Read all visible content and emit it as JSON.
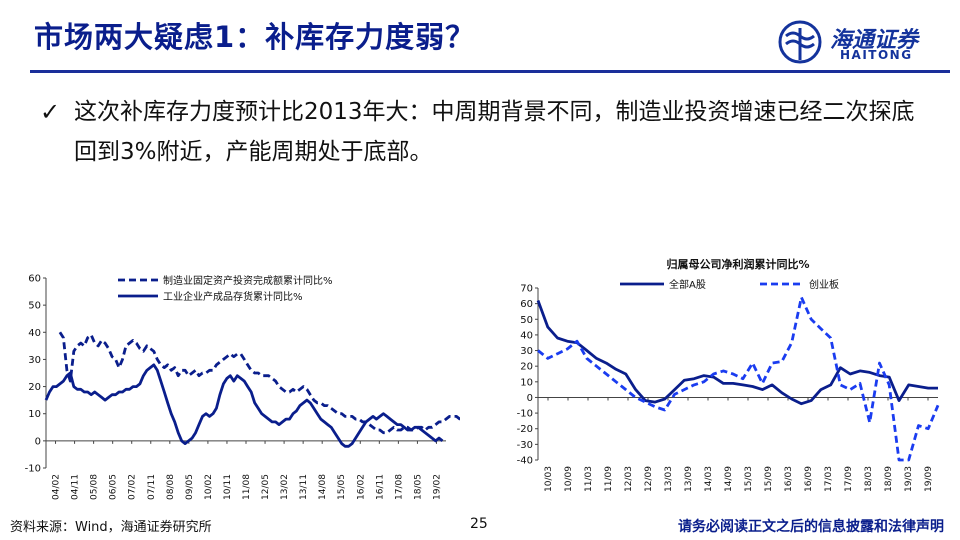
{
  "header": {
    "title": "市场两大疑虑1：补库存力度弱？",
    "logo_cn": "海通证券",
    "logo_en": "HAITONG",
    "accent_color": "#0a1e8c"
  },
  "bullet": {
    "icon": "check-icon",
    "text": "这次补库存力度预计比2013年大：中周期背景不同，制造业投资增速已经二次探底回到3%附近，产能周期处于底部。"
  },
  "footer": {
    "source": "资料来源：Wind，海通证券研究所",
    "page": "25",
    "disclaimer": "请务必阅读正文之后的信息披露和法律声明"
  },
  "chart_data": [
    {
      "type": "line",
      "title": "",
      "ylim": [
        -10,
        60
      ],
      "yticks": [
        -10,
        0,
        10,
        20,
        30,
        40,
        50,
        60
      ],
      "x_labels": [
        "04/02",
        "04/11",
        "05/08",
        "06/05",
        "07/02",
        "07/11",
        "08/08",
        "09/05",
        "10/02",
        "10/11",
        "11/08",
        "12/05",
        "13/02",
        "13/11",
        "14/08",
        "15/05",
        "16/02",
        "16/11",
        "17/08",
        "18/05",
        "19/02"
      ],
      "legend": "top-right",
      "series": [
        {
          "name": "制造业固定资产投资完成额累计同比%",
          "style": "dashed",
          "color": "#0a1e8c",
          "start_index": 4,
          "values": [
            40,
            38,
            26,
            22,
            33,
            35,
            36,
            35,
            38,
            39,
            36,
            35,
            37,
            36,
            34,
            31,
            30,
            27,
            30,
            35,
            36,
            37,
            36,
            34,
            33,
            35,
            34,
            33,
            30,
            28,
            27,
            28,
            26,
            27,
            24,
            26,
            26,
            24,
            25,
            26,
            24,
            25,
            25,
            26,
            26,
            28,
            29,
            30,
            31,
            32,
            31,
            32,
            32,
            30,
            28,
            26,
            25,
            25,
            24,
            24,
            24,
            23,
            22,
            20,
            19,
            18,
            18,
            19,
            18,
            19,
            20,
            19,
            17,
            15,
            14,
            14,
            13,
            13,
            12,
            11,
            10,
            10,
            9,
            9,
            9,
            8,
            8,
            7,
            7,
            6,
            5,
            4,
            4,
            3,
            3,
            4,
            5,
            4,
            4,
            5,
            5,
            4,
            4,
            5,
            5,
            4,
            5,
            5,
            6,
            7,
            7,
            8,
            9,
            9,
            9,
            8,
            6,
            5,
            4,
            3,
            3
          ]
        },
        {
          "name": "工业企业产成品存货累计同比%",
          "style": "solid",
          "color": "#0a1e8c",
          "start_index": 0,
          "values": [
            15,
            18,
            20,
            20,
            21,
            22,
            24,
            25,
            20,
            19,
            19,
            18,
            18,
            17,
            18,
            17,
            16,
            15,
            16,
            17,
            17,
            18,
            18,
            19,
            19,
            20,
            20,
            21,
            24,
            26,
            27,
            28,
            26,
            22,
            18,
            14,
            10,
            7,
            3,
            0,
            -1,
            0,
            1,
            3,
            6,
            9,
            10,
            9,
            10,
            12,
            17,
            21,
            23,
            24,
            22,
            24,
            23,
            22,
            20,
            18,
            14,
            12,
            10,
            9,
            8,
            7,
            7,
            6,
            7,
            8,
            8,
            10,
            11,
            13,
            14,
            15,
            14,
            12,
            10,
            8,
            7,
            6,
            5,
            3,
            1,
            -1,
            -2,
            -2,
            -1,
            1,
            3,
            5,
            7,
            8,
            9,
            8,
            9,
            10,
            9,
            8,
            7,
            6,
            6,
            5,
            4,
            4,
            5,
            5,
            4,
            3,
            2,
            1,
            0,
            1,
            0
          ]
        }
      ]
    },
    {
      "type": "line",
      "title": "归属母公司净利润累计同比%",
      "ylim": [
        -40,
        70
      ],
      "yticks": [
        -40,
        -30,
        -20,
        -10,
        0,
        10,
        20,
        30,
        40,
        50,
        60,
        70
      ],
      "x_labels": [
        "10/03",
        "10/09",
        "11/03",
        "11/09",
        "12/03",
        "12/09",
        "13/03",
        "13/09",
        "14/03",
        "14/09",
        "15/03",
        "15/09",
        "16/03",
        "16/09",
        "17/03",
        "17/09",
        "18/03",
        "18/09",
        "19/03",
        "19/09"
      ],
      "legend": "top",
      "series": [
        {
          "name": "全部A股",
          "style": "solid",
          "color": "#0a1e8c",
          "values": [
            62,
            45,
            38,
            36,
            35,
            30,
            25,
            22,
            18,
            15,
            5,
            -2,
            -3,
            -1,
            5,
            11,
            12,
            14,
            13,
            9,
            9,
            8,
            7,
            5,
            8,
            3,
            -1,
            -4,
            -2,
            5,
            8,
            19,
            15,
            17,
            16,
            14,
            13,
            -2,
            8,
            7,
            6,
            6
          ]
        },
        {
          "name": "创业板",
          "style": "dashed",
          "color": "#1a3cf0",
          "values": [
            30,
            25,
            28,
            31,
            36,
            25,
            20,
            15,
            10,
            5,
            0,
            -3,
            -6,
            -8,
            2,
            5,
            8,
            10,
            15,
            17,
            15,
            12,
            22,
            9,
            22,
            23,
            35,
            64,
            50,
            44,
            38,
            8,
            5,
            9,
            -16,
            22,
            8,
            -40,
            -40,
            -18,
            -20,
            -5
          ]
        }
      ]
    }
  ]
}
